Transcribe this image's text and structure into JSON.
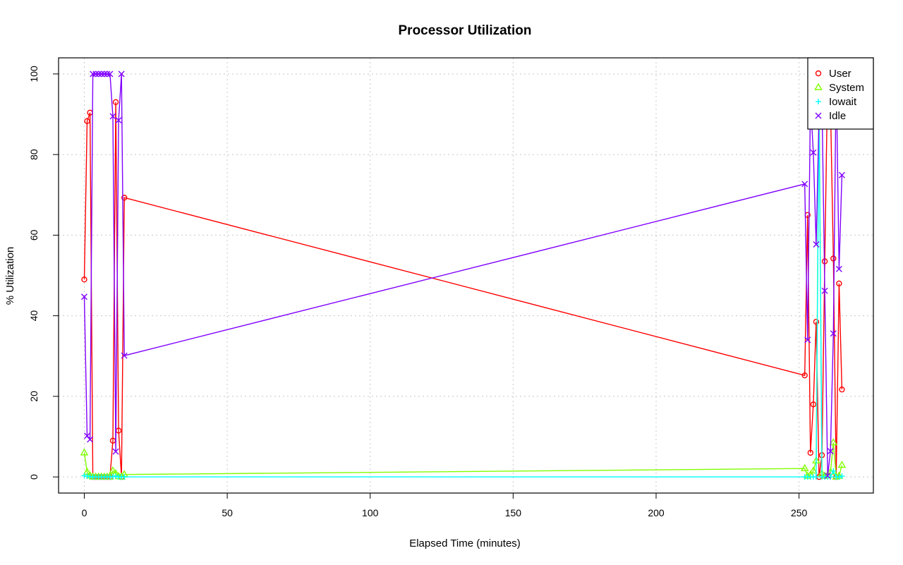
{
  "chart_data": {
    "type": "line",
    "title": "Processor Utilization",
    "xlabel": "Elapsed Time (minutes)",
    "ylabel": "% Utilization",
    "xlim": [
      -9,
      276
    ],
    "ylim": [
      -4,
      104
    ],
    "xticks": [
      0,
      50,
      100,
      150,
      200,
      250
    ],
    "yticks": [
      0,
      20,
      40,
      60,
      80,
      100
    ],
    "grid": true,
    "legend_position": "top-right",
    "series": [
      {
        "name": "User",
        "color": "#FF0000",
        "marker": "circle",
        "x": [
          0,
          1,
          2,
          3,
          4,
          5,
          6,
          7,
          8,
          9,
          10,
          11,
          12,
          13,
          14,
          252,
          253,
          254,
          255,
          256,
          257,
          258,
          259,
          260,
          261,
          262,
          263,
          264,
          265
        ],
        "y": [
          49,
          88.3,
          90.4,
          0,
          0,
          0,
          0,
          0,
          0,
          0,
          9,
          93,
          11.5,
          0,
          69.3,
          25.2,
          65,
          6,
          18,
          38.5,
          0,
          5.4,
          53.5,
          99.5,
          92.5,
          54.2,
          0,
          48,
          21.7
        ]
      },
      {
        "name": "System",
        "color": "#80FF00",
        "marker": "triangle",
        "x": [
          0,
          1,
          2,
          3,
          4,
          5,
          6,
          7,
          8,
          9,
          10,
          11,
          12,
          13,
          14,
          252,
          253,
          254,
          255,
          256,
          257,
          258,
          259,
          260,
          261,
          262,
          263,
          264,
          265
        ],
        "y": [
          6,
          1.2,
          0.3,
          0,
          0,
          0,
          0,
          0,
          0,
          0,
          1.5,
          0.8,
          0.1,
          0,
          0.6,
          2.1,
          0.2,
          0.5,
          1.5,
          4,
          97,
          0.8,
          0.2,
          0.4,
          1.2,
          8.5,
          0,
          0.2,
          2.9
        ]
      },
      {
        "name": "Iowait",
        "color": "#00FFFF",
        "marker": "plus",
        "x": [
          0,
          1,
          2,
          3,
          4,
          5,
          6,
          7,
          8,
          9,
          10,
          11,
          12,
          13,
          14,
          252,
          253,
          254,
          255,
          256,
          257,
          258,
          259,
          260,
          261,
          262,
          263,
          264,
          265
        ],
        "y": [
          0.3,
          0.2,
          0.1,
          0,
          0,
          0,
          0,
          0,
          0,
          0,
          0.1,
          0.2,
          0,
          0,
          0,
          0,
          0,
          0,
          0,
          0,
          93.5,
          0,
          0,
          0,
          0,
          1.5,
          0,
          0,
          0.2
        ]
      },
      {
        "name": "Idle",
        "color": "#8000FF",
        "marker": "cross",
        "x": [
          0,
          1,
          2,
          3,
          4,
          5,
          6,
          7,
          8,
          9,
          10,
          11,
          12,
          13,
          14,
          252,
          253,
          254,
          255,
          256,
          257,
          258,
          259,
          260,
          261,
          262,
          263,
          264,
          265
        ],
        "y": [
          44.7,
          10.2,
          9.3,
          100,
          100,
          100,
          100,
          100,
          100,
          100,
          89.5,
          6.3,
          88.5,
          100,
          30.1,
          72.7,
          34,
          93.2,
          80.5,
          57.7,
          90,
          93.8,
          46.2,
          0.3,
          6.4,
          35.6,
          100,
          51.6,
          74.9
        ]
      }
    ]
  }
}
